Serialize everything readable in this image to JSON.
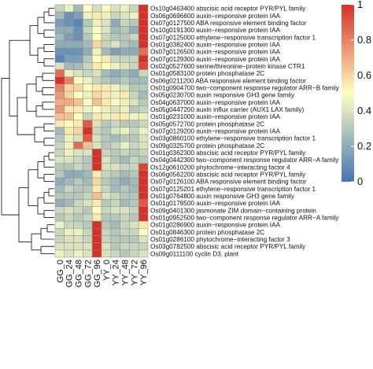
{
  "chart_data": {
    "type": "heatmap",
    "title": "",
    "xlabel": "",
    "ylabel": "",
    "columns": [
      "GG_0",
      "GG_24",
      "GG_48",
      "GG_72",
      "GG_96",
      "YY_0",
      "YY_24",
      "YY_48",
      "YY_72",
      "YY_96"
    ],
    "rows": [
      "Os10g0463400 abscisic acid receptor PYR/PYL family",
      "Os06g0696600 auxin−responsive protein IAA",
      "Os07g0127500 ABA responsive element binding factor",
      "Os10g0191300 auxin−responsive protein IAA",
      "Os07g0125000 ethylene−responsive transcription factor 1",
      "Os01g0382400 auxin−responsive protein IAA",
      "Os07g0126500 auxin−responsive protein IAA",
      "Os07g0129300 auxin−responsive protein IAA",
      "Os02g0527600 serine/threonine−protein kinase CTR1",
      "Os01g0583100 protein phosphatase 2C",
      "Os06g0211200 ABA responsive element binding factor",
      "Os01g0904700 two−component response regulator ARR−B family",
      "Os05g0230700 auxin responsive GH3 gene family",
      "Os04g0637000 auxin−responsive protein IAA",
      "Os05g0447200 auxin influx carrier (AUX1 LAX family)",
      "Os01g0231000 auxin−responsive protein IAA",
      "Os05g0572700 protein phosphatase 2C",
      "Os07g0129200 auxin−responsive protein IAA",
      "Os03g0860100 ethylene−responsive transcription factor 1",
      "Os09g0325700 protein phosphatase 2C",
      "Os01g0362300 abscisic acid receptor PYR/PYL family",
      "Os04g0442300 two−component response regulator ARR−A family",
      "Os12g0610200 phytochrome−interacting factor 4",
      "Os06g0562200 abscisic acid receptor PYR/PYL family",
      "Os07g0126100 ABA responsive element binding factor",
      "Os07g0125201 ethylene−responsive transcription factor 1",
      "Os01g0764800 auxin responsive GH3 gene family",
      "Os01g0178500 auxin−responsive protein IAA",
      "Os09g0401300 jasmonate ZIM domain−containing protein",
      "Os01g0952500 two−component response regulator ARR−A family",
      "Os01g0286900 auxin−responsive protein IAA",
      "Os01g0846300 protein phosphatase 2C",
      "Os01g0286100 phytochrome−interacting factor 3",
      "Os03g0782500 abscisic acid receptor PYR/PYL family",
      "Os09g0111100 cyclin D3, plant"
    ],
    "values": [
      [
        0.35,
        0.45,
        0.25,
        0.5,
        0.38,
        0.52,
        0.4,
        0.45,
        0.35,
        1.0
      ],
      [
        0.25,
        0.1,
        0.15,
        0.45,
        0.55,
        0.45,
        0.35,
        0.4,
        0.45,
        1.0
      ],
      [
        0.15,
        0.1,
        0.05,
        0.3,
        0.45,
        0.4,
        0.2,
        0.35,
        0.3,
        1.0
      ],
      [
        0.2,
        0.2,
        0.1,
        0.35,
        0.5,
        0.4,
        0.25,
        0.3,
        0.2,
        1.0
      ],
      [
        0.25,
        0.15,
        0.1,
        0.3,
        0.5,
        0.35,
        0.3,
        0.3,
        0.35,
        1.0
      ],
      [
        0.2,
        0.2,
        0.2,
        0.25,
        0.6,
        0.35,
        0.4,
        0.3,
        0.25,
        1.0
      ],
      [
        0.1,
        0.1,
        0.1,
        0.2,
        0.45,
        0.25,
        0.15,
        0.2,
        0.2,
        0.85
      ],
      [
        0.05,
        0.15,
        0.15,
        0.3,
        0.5,
        0.55,
        0.35,
        0.35,
        0.35,
        1.0
      ],
      [
        0.4,
        0.25,
        0.25,
        0.35,
        0.55,
        0.5,
        0.45,
        0.4,
        0.35,
        0.95
      ],
      [
        0.85,
        0.45,
        0.4,
        0.35,
        0.4,
        0.25,
        0.2,
        0.25,
        0.2,
        0.35
      ],
      [
        1.0,
        0.8,
        0.5,
        0.45,
        0.35,
        0.3,
        0.25,
        0.3,
        0.25,
        0.25
      ],
      [
        0.8,
        0.6,
        0.6,
        0.5,
        0.55,
        0.55,
        0.45,
        0.4,
        0.3,
        0.3
      ],
      [
        0.75,
        0.6,
        0.5,
        0.45,
        0.6,
        0.55,
        0.45,
        0.55,
        0.35,
        0.25
      ],
      [
        0.7,
        0.7,
        0.65,
        0.5,
        0.65,
        0.55,
        0.5,
        0.45,
        0.4,
        0.3
      ],
      [
        0.75,
        0.55,
        0.55,
        0.45,
        0.5,
        0.45,
        0.4,
        0.45,
        0.3,
        0.35
      ],
      [
        0.65,
        0.65,
        0.5,
        0.35,
        0.55,
        0.45,
        0.55,
        0.55,
        0.45,
        0.45
      ],
      [
        0.55,
        0.5,
        0.55,
        0.9,
        0.4,
        0.3,
        0.35,
        0.3,
        0.3,
        0.35
      ],
      [
        0.25,
        0.55,
        0.6,
        1.0,
        0.35,
        0.3,
        0.4,
        0.45,
        0.35,
        0.45
      ],
      [
        0.3,
        0.45,
        0.4,
        0.9,
        0.4,
        0.3,
        0.25,
        0.3,
        0.3,
        0.4
      ],
      [
        0.35,
        0.45,
        0.85,
        0.65,
        0.4,
        0.3,
        0.35,
        0.45,
        0.35,
        0.4
      ],
      [
        0.35,
        0.45,
        0.4,
        0.4,
        1.0,
        0.35,
        0.3,
        0.35,
        0.3,
        0.35
      ],
      [
        0.4,
        0.4,
        0.35,
        0.3,
        1.0,
        0.4,
        0.3,
        0.25,
        0.35,
        0.3
      ],
      [
        0.3,
        0.3,
        0.35,
        0.3,
        1.0,
        0.4,
        0.4,
        0.35,
        0.35,
        0.95
      ],
      [
        0.3,
        0.2,
        0.2,
        0.25,
        0.55,
        0.35,
        0.3,
        0.25,
        0.3,
        1.0
      ],
      [
        0.2,
        0.25,
        0.3,
        0.25,
        0.6,
        0.3,
        0.25,
        0.2,
        0.25,
        1.0
      ],
      [
        0.25,
        0.35,
        0.3,
        0.3,
        0.55,
        0.35,
        0.25,
        0.3,
        0.25,
        1.0
      ],
      [
        0.3,
        0.3,
        0.3,
        0.35,
        0.65,
        0.4,
        0.35,
        0.3,
        0.3,
        1.0
      ],
      [
        0.2,
        0.25,
        0.35,
        0.4,
        0.55,
        0.3,
        0.35,
        0.25,
        0.3,
        0.9
      ],
      [
        0.35,
        0.4,
        0.35,
        0.3,
        0.5,
        0.35,
        0.4,
        0.4,
        0.35,
        1.0
      ],
      [
        0.3,
        0.35,
        0.3,
        0.35,
        0.55,
        0.3,
        0.3,
        0.35,
        0.3,
        1.0
      ],
      [
        0.45,
        0.35,
        0.35,
        0.3,
        1.0,
        0.3,
        0.25,
        0.35,
        0.4,
        0.55
      ],
      [
        0.35,
        0.45,
        0.45,
        0.35,
        1.0,
        0.35,
        0.3,
        0.35,
        0.35,
        0.5
      ],
      [
        0.35,
        0.4,
        0.4,
        0.35,
        1.0,
        0.35,
        0.3,
        0.3,
        0.3,
        0.4
      ],
      [
        0.4,
        0.4,
        0.4,
        0.4,
        1.0,
        0.4,
        0.3,
        0.35,
        0.35,
        0.35
      ],
      [
        0.45,
        0.4,
        0.45,
        0.4,
        1.0,
        0.4,
        0.35,
        0.3,
        0.35,
        0.4
      ]
    ],
    "colorbar": {
      "min": 0,
      "max": 1,
      "ticks": [
        "0",
        "0.2",
        "0.4",
        "0.6",
        "0.8",
        "1"
      ],
      "colors": [
        "#4575b4",
        "#ffffbf",
        "#d73027"
      ]
    },
    "dendrogram": "row clustering tree on left",
    "grid": false,
    "legend": "right"
  }
}
